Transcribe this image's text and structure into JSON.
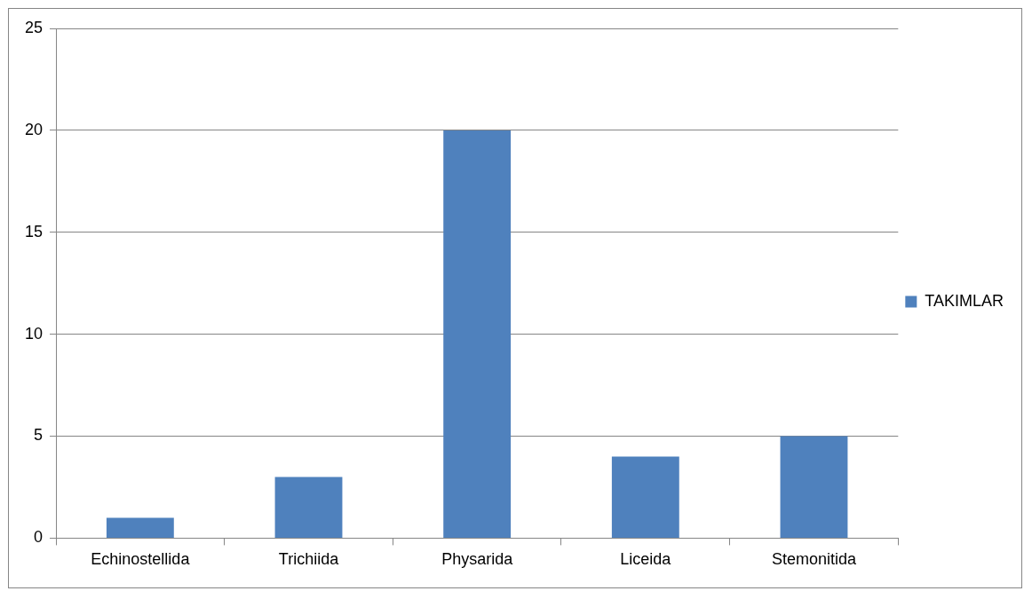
{
  "chart_data": {
    "type": "bar",
    "categories": [
      "Echinostellida",
      "Trichiida",
      "Physarida",
      "Liceida",
      "Stemonitida"
    ],
    "series": [
      {
        "name": "TAKIMLAR",
        "color": "#4f81bd",
        "values": [
          1,
          3,
          20,
          4,
          5
        ]
      }
    ],
    "ylim": [
      0,
      25
    ],
    "yticks": [
      0,
      5,
      10,
      15,
      20,
      25
    ],
    "grid": "y",
    "legend": "right"
  }
}
